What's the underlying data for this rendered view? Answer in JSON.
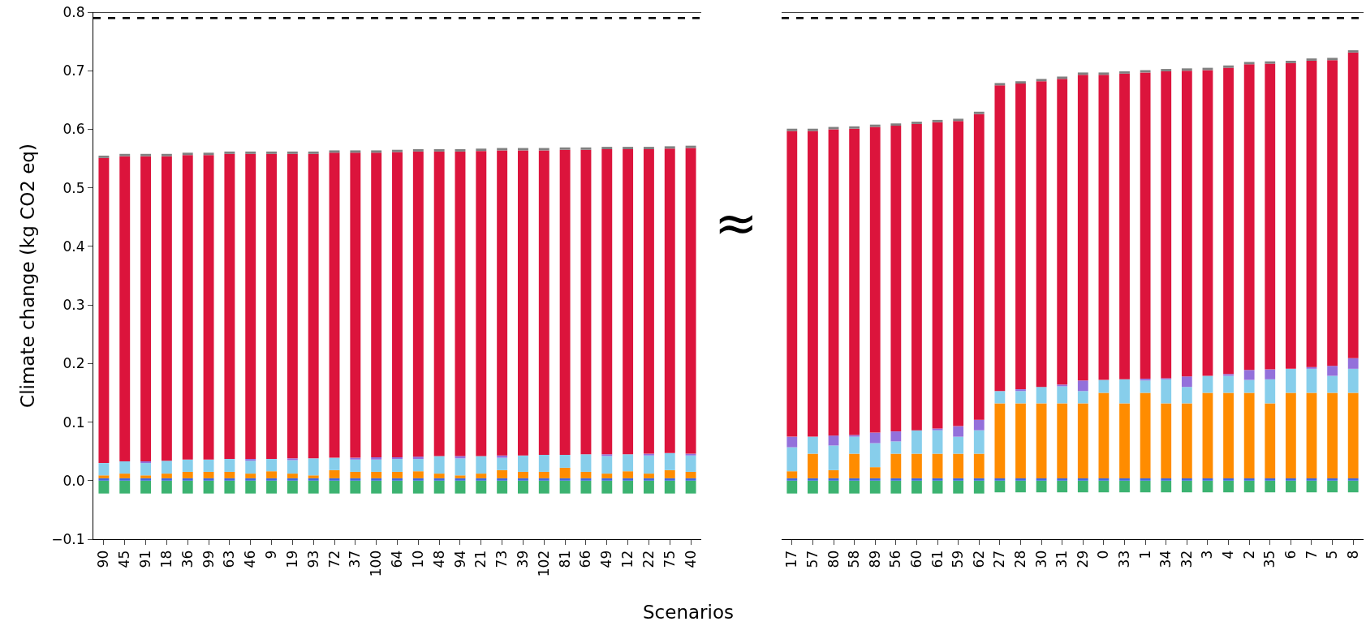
{
  "chart_data": [
    {
      "type": "bar",
      "stacked": true,
      "ylabel": "Climate change (kg CO2 eq)",
      "xlabel": "Scenarios",
      "categories": [
        "90",
        "45",
        "91",
        "18",
        "36",
        "99",
        "63",
        "46",
        "9",
        "19",
        "93",
        "72",
        "37",
        "100",
        "64",
        "10",
        "48",
        "94",
        "21",
        "73",
        "39",
        "102",
        "81",
        "66",
        "49",
        "12",
        "22",
        "75",
        "40"
      ],
      "ylim": [
        -0.1,
        0.8
      ],
      "yticks": [
        {
          "value": -0.1,
          "label": "−0.1"
        },
        {
          "value": 0,
          "label": "0.0"
        },
        0.1,
        0.2,
        0.3,
        0.4,
        0.5,
        0.6,
        0.7,
        0.8
      ],
      "series": [
        {
          "color": "#3cb371",
          "values": [
            -0.022,
            -0.022,
            -0.022,
            -0.022,
            -0.022,
            -0.022,
            -0.022,
            -0.022,
            -0.022,
            -0.022,
            -0.022,
            -0.022,
            -0.022,
            -0.022,
            -0.022,
            -0.022,
            -0.022,
            -0.022,
            -0.022,
            -0.022,
            -0.022,
            -0.022,
            -0.022,
            -0.022,
            -0.022,
            -0.022,
            -0.022,
            -0.022,
            -0.022
          ]
        },
        {
          "color": "#4169e1",
          "values": [
            0.004,
            0.004,
            0.004,
            0.004,
            0.004,
            0.004,
            0.004,
            0.004,
            0.004,
            0.004,
            0.004,
            0.004,
            0.004,
            0.004,
            0.004,
            0.004,
            0.004,
            0.004,
            0.004,
            0.004,
            0.004,
            0.004,
            0.004,
            0.004,
            0.004,
            0.004,
            0.004,
            0.004,
            0.004
          ]
        },
        {
          "color": "#ff8c00",
          "values": [
            0.005,
            0.008,
            0.005,
            0.008,
            0.011,
            0.011,
            0.011,
            0.008,
            0.012,
            0.008,
            0.005,
            0.014,
            0.011,
            0.011,
            0.011,
            0.012,
            0.008,
            0.005,
            0.008,
            0.014,
            0.011,
            0.011,
            0.018,
            0.011,
            0.008,
            0.012,
            0.008,
            0.014,
            0.011
          ]
        },
        {
          "color": "#87ceeb",
          "values": [
            0.021,
            0.021,
            0.021,
            0.022,
            0.021,
            0.021,
            0.022,
            0.022,
            0.021,
            0.023,
            0.029,
            0.021,
            0.021,
            0.021,
            0.022,
            0.021,
            0.03,
            0.029,
            0.03,
            0.021,
            0.028,
            0.029,
            0.022,
            0.03,
            0.03,
            0.029,
            0.031,
            0.029,
            0.028
          ]
        },
        {
          "color": "#9370db",
          "values": [
            0,
            0,
            0.003,
            0,
            0,
            0,
            0,
            0.003,
            0,
            0.003,
            0,
            0,
            0.003,
            0.004,
            0.003,
            0.004,
            0,
            0.004,
            0,
            0.004,
            0,
            0,
            0,
            0,
            0.003,
            0,
            0.003,
            0,
            0.003
          ]
        },
        {
          "color": "#dc143c",
          "values": [
            0.521,
            0.521,
            0.521,
            0.52,
            0.52,
            0.52,
            0.521,
            0.521,
            0.521,
            0.52,
            0.52,
            0.521,
            0.521,
            0.52,
            0.521,
            0.521,
            0.52,
            0.52,
            0.521,
            0.521,
            0.521,
            0.52,
            0.521,
            0.52,
            0.521,
            0.521,
            0.52,
            0.52,
            0.522
          ]
        },
        {
          "color": "#808080",
          "values": [
            0.004,
            0.004,
            0.004,
            0.004,
            0.004,
            0.004,
            0.004,
            0.004,
            0.004,
            0.004,
            0.004,
            0.004,
            0.004,
            0.004,
            0.004,
            0.004,
            0.004,
            0.004,
            0.004,
            0.004,
            0.004,
            0.004,
            0.004,
            0.004,
            0.004,
            0.004,
            0.004,
            0.004,
            0.004
          ]
        }
      ],
      "ref_lines": [
        {
          "axis": "y",
          "value": 0.8,
          "color": "#000000",
          "line_style": "solid"
        },
        {
          "axis": "y",
          "value": 0.79,
          "color": "#000000",
          "line_style": "dashed"
        }
      ]
    },
    {
      "type": "bar",
      "stacked": true,
      "tick_labels": "x",
      "annotations": [
        "≈"
      ],
      "categories": [
        "17",
        "57",
        "80",
        "58",
        "89",
        "56",
        "60",
        "61",
        "59",
        "62",
        "27",
        "28",
        "30",
        "31",
        "29",
        "0",
        "33",
        "1",
        "34",
        "32",
        "3",
        "4",
        "2",
        "35",
        "6",
        "7",
        "5",
        "8"
      ],
      "ylim": [
        -0.1,
        0.8
      ],
      "series": [
        {
          "color": "#3cb371",
          "values": [
            -0.022,
            -0.022,
            -0.022,
            -0.022,
            -0.022,
            -0.022,
            -0.022,
            -0.022,
            -0.022,
            -0.022,
            -0.02,
            -0.02,
            -0.02,
            -0.02,
            -0.02,
            -0.02,
            -0.02,
            -0.02,
            -0.02,
            -0.02,
            -0.02,
            -0.02,
            -0.02,
            -0.02,
            -0.02,
            -0.02,
            -0.02,
            -0.02
          ]
        },
        {
          "color": "#4169e1",
          "values": [
            0.004,
            0.004,
            0.004,
            0.004,
            0.004,
            0.004,
            0.004,
            0.004,
            0.004,
            0.004,
            0.004,
            0.004,
            0.004,
            0.004,
            0.004,
            0.004,
            0.004,
            0.004,
            0.004,
            0.004,
            0.004,
            0.004,
            0.004,
            0.004,
            0.004,
            0.004,
            0.004,
            0.004
          ]
        },
        {
          "color": "#ff8c00",
          "values": [
            0.012,
            0.042,
            0.014,
            0.042,
            0.019,
            0.042,
            0.042,
            0.042,
            0.042,
            0.042,
            0.128,
            0.128,
            0.128,
            0.128,
            0.128,
            0.146,
            0.128,
            0.146,
            0.128,
            0.128,
            0.146,
            0.146,
            0.146,
            0.128,
            0.146,
            0.146,
            0.146,
            0.146
          ]
        },
        {
          "color": "#87ceeb",
          "values": [
            0.041,
            0.029,
            0.042,
            0.029,
            0.041,
            0.021,
            0.04,
            0.04,
            0.029,
            0.04,
            0.021,
            0.021,
            0.028,
            0.029,
            0.021,
            0.022,
            0.041,
            0.021,
            0.041,
            0.028,
            0.029,
            0.029,
            0.022,
            0.041,
            0.041,
            0.041,
            0.029,
            0.041
          ]
        },
        {
          "color": "#9370db",
          "values": [
            0.018,
            0,
            0.017,
            0.003,
            0.018,
            0.017,
            0,
            0.003,
            0.018,
            0.018,
            0,
            0.003,
            0,
            0.003,
            0.018,
            0,
            0,
            0.003,
            0.002,
            0.018,
            0,
            0.003,
            0.017,
            0.017,
            0,
            0.003,
            0.017,
            0.018
          ]
        },
        {
          "color": "#dc143c",
          "values": [
            0.522,
            0.522,
            0.523,
            0.523,
            0.522,
            0.522,
            0.523,
            0.523,
            0.521,
            0.522,
            0.522,
            0.522,
            0.522,
            0.522,
            0.522,
            0.521,
            0.522,
            0.523,
            0.524,
            0.522,
            0.522,
            0.523,
            0.522,
            0.522,
            0.522,
            0.523,
            0.522,
            0.522
          ]
        },
        {
          "color": "#808080",
          "values": [
            0.004,
            0.004,
            0.004,
            0.004,
            0.004,
            0.004,
            0.004,
            0.004,
            0.004,
            0.004,
            0.004,
            0.004,
            0.004,
            0.004,
            0.004,
            0.004,
            0.004,
            0.004,
            0.004,
            0.004,
            0.004,
            0.004,
            0.004,
            0.004,
            0.004,
            0.004,
            0.004,
            0.004
          ]
        }
      ],
      "ref_lines": [
        {
          "axis": "y",
          "value": 0.8,
          "color": "#000000",
          "line_style": "solid"
        },
        {
          "axis": "y",
          "value": 0.79,
          "color": "#000000",
          "line_style": "dashed"
        }
      ]
    }
  ]
}
